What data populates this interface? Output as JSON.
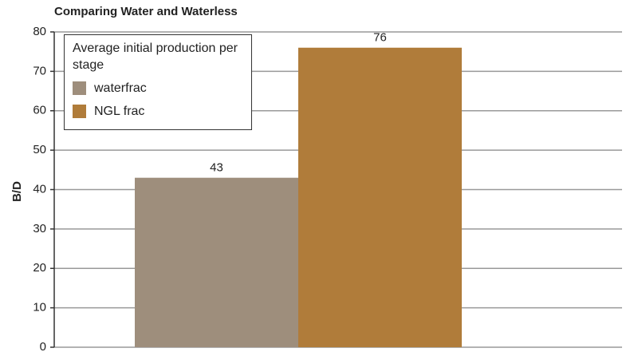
{
  "chart_data": {
    "type": "bar",
    "title": "Comparing Water and Waterless",
    "y_label": "B/D",
    "categories": [
      null
    ],
    "series": [
      {
        "name": "waterfrac",
        "color": "#9e8e7c",
        "values": [
          43
        ]
      },
      {
        "name": "NGL frac",
        "color": "#b07c3a",
        "values": [
          76
        ]
      }
    ],
    "legend_title": "Average initial production per stage",
    "legend_position": "upper left",
    "ylim": [
      0,
      80
    ],
    "yticks": [
      0,
      10,
      20,
      30,
      40,
      50,
      60,
      70,
      80
    ],
    "grid": true
  }
}
